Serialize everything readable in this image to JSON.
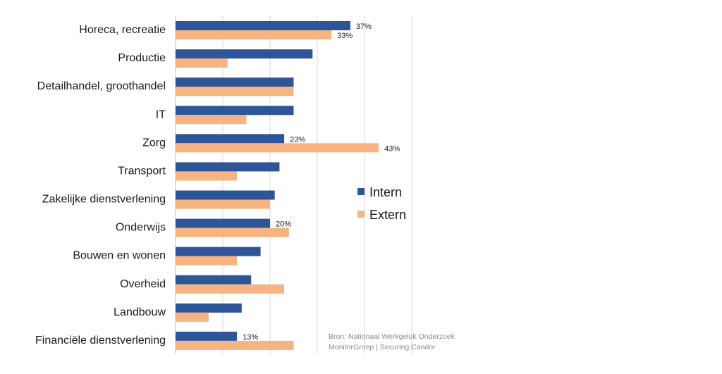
{
  "chart_data": {
    "type": "bar",
    "orientation": "horizontal",
    "categories": [
      "Horeca, recreatie",
      "Productie",
      "Detailhandel, groothandel",
      "IT",
      "Zorg",
      "Transport",
      "Zakelijke dienstverlening",
      "Onderwijs",
      "Bouwen en wonen",
      "Overheid",
      "Landbouw",
      "Financiële dienstverlening"
    ],
    "series": [
      {
        "name": "Intern",
        "color": "#2E5597",
        "values": [
          37,
          29,
          25,
          25,
          23,
          22,
          21,
          20,
          18,
          16,
          14,
          13
        ],
        "labels": [
          "37%",
          "",
          "",
          "",
          "23%",
          "",
          "",
          "20%",
          "",
          "",
          "",
          "13%"
        ]
      },
      {
        "name": "Extern",
        "color": "#F5B482",
        "values": [
          33,
          11,
          25,
          15,
          43,
          13,
          20,
          24,
          13,
          23,
          7,
          25
        ],
        "labels": [
          "33%",
          "",
          "",
          "",
          "43%",
          "",
          "",
          "",
          "",
          "",
          "",
          ""
        ]
      }
    ],
    "xlim": [
      0,
      50
    ],
    "grid": true,
    "title": "",
    "xlabel": "",
    "ylabel": "",
    "legend_position": "right"
  },
  "source": {
    "line1": "Bron: Nationaal Werkgeluk Onderzoek",
    "line2": "MonitorGroep | Securing Candor"
  }
}
